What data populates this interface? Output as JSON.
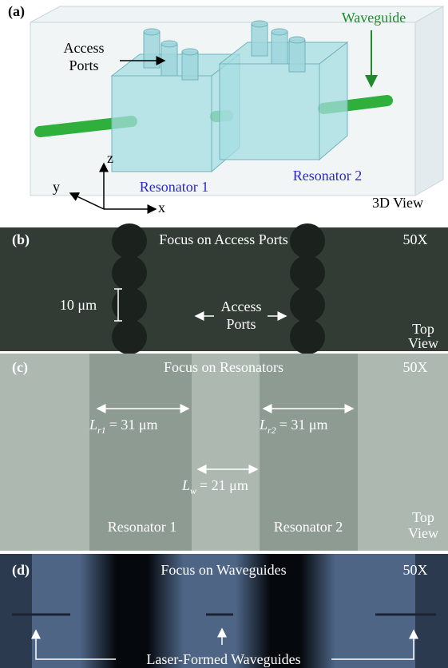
{
  "panel_a": {
    "label": "(a)",
    "access_ports": [
      "Access",
      "Ports"
    ],
    "waveguide": "Waveguide",
    "resonator_1": "Resonator 1",
    "resonator_2": "Resonator 2",
    "view": "3D View",
    "axes": {
      "x": "x",
      "y": "y",
      "z": "z"
    }
  },
  "panel_b": {
    "label": "(b)",
    "title": "Focus on Access Ports",
    "magnification": "50X",
    "scale_bar": "10 μm",
    "access_ports": [
      "Access",
      "Ports"
    ],
    "view": [
      "Top",
      "View"
    ]
  },
  "panel_c": {
    "label": "(c)",
    "title": "Focus on Resonators",
    "magnification": "50X",
    "lengths": [
      {
        "symbol": "L",
        "subscript": "r1",
        "text": "= 31 μm"
      },
      {
        "symbol": "L",
        "subscript": "r2",
        "text": "= 31 μm"
      },
      {
        "symbol": "L",
        "subscript": "w",
        "text": "= 21 μm"
      }
    ],
    "resonator_1": "Resonator 1",
    "resonator_2": "Resonator 2",
    "view": [
      "Top",
      "View"
    ]
  },
  "panel_d": {
    "label": "(d)",
    "title": "Focus on Waveguides",
    "magnification": "50X",
    "caption": "Laser-Formed Waveguides"
  }
}
